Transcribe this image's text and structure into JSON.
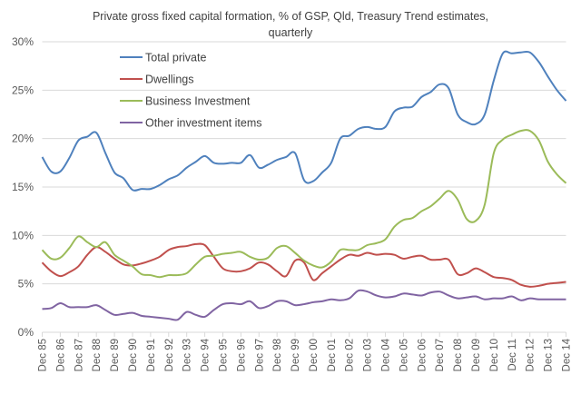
{
  "chart_data": {
    "type": "line",
    "title": "Private gross fixed capital formation, % of GSP, Qld, Treasury Trend estimates, quarterly",
    "title_lines": [
      "Private gross fixed capital formation, % of GSP, Qld, Treasury Trend estimates,",
      "quarterly"
    ],
    "xlabel": "",
    "ylabel": "",
    "ylim": [
      0,
      30
    ],
    "yticks": [
      "0%",
      "5%",
      "10%",
      "15%",
      "20%",
      "25%",
      "30%"
    ],
    "ytick_values": [
      0,
      5,
      10,
      15,
      20,
      25,
      30
    ],
    "xticks": [
      "Dec 85",
      "Dec 86",
      "Dec 87",
      "Dec 88",
      "Dec 89",
      "Dec 90",
      "Dec 91",
      "Dec 92",
      "Dec 93",
      "Dec 94",
      "Dec 95",
      "Dec 96",
      "Dec 97",
      "Dec 98",
      "Dec 99",
      "Dec 00",
      "Dec 01",
      "Dec 02",
      "Dec 03",
      "Dec 04",
      "Dec 05",
      "Dec 06",
      "Dec 07",
      "Dec 08",
      "Dec 09",
      "Dec 10",
      "Dec 11",
      "Dec 12",
      "Dec 13",
      "Dec 14"
    ],
    "x_note_points": "half-yearly from Dec 85 to Dec 14",
    "grid": true,
    "legend_placement": "top-left",
    "series": [
      {
        "name": "Total private",
        "color": "#4F81BD",
        "values": [
          18.1,
          16.6,
          16.6,
          18.0,
          19.8,
          20.2,
          20.6,
          18.5,
          16.5,
          15.9,
          14.7,
          14.8,
          14.8,
          15.2,
          15.8,
          16.2,
          17.0,
          17.6,
          18.2,
          17.5,
          17.4,
          17.5,
          17.5,
          18.3,
          17.0,
          17.3,
          17.8,
          18.1,
          18.5,
          15.7,
          15.6,
          16.5,
          17.5,
          20.0,
          20.3,
          21.0,
          21.2,
          21.0,
          21.2,
          22.8,
          23.2,
          23.3,
          24.3,
          24.8,
          25.6,
          25.2,
          22.5,
          21.7,
          21.5,
          22.5,
          26.0,
          28.8,
          28.8,
          28.9,
          28.9,
          27.9,
          26.4,
          25.0,
          23.9
        ]
      },
      {
        "name": "Dwellings",
        "color": "#C0504D",
        "values": [
          7.2,
          6.3,
          5.8,
          6.2,
          6.8,
          8.0,
          8.8,
          8.3,
          7.6,
          7.0,
          6.9,
          7.1,
          7.4,
          7.8,
          8.5,
          8.8,
          8.9,
          9.1,
          9.0,
          7.8,
          6.6,
          6.3,
          6.3,
          6.6,
          7.2,
          7.0,
          6.3,
          5.8,
          7.4,
          7.2,
          5.4,
          6.1,
          6.8,
          7.5,
          8.0,
          7.9,
          8.2,
          8.0,
          8.1,
          8.0,
          7.6,
          7.8,
          7.9,
          7.5,
          7.5,
          7.5,
          6.0,
          6.1,
          6.6,
          6.2,
          5.7,
          5.6,
          5.4,
          4.9,
          4.7,
          4.8,
          5.0,
          5.1,
          5.2
        ]
      },
      {
        "name": "Business Investment",
        "color": "#9BBB59",
        "values": [
          8.5,
          7.6,
          7.7,
          8.7,
          9.9,
          9.3,
          8.8,
          9.3,
          8.0,
          7.4,
          6.8,
          6.0,
          5.9,
          5.7,
          5.9,
          5.9,
          6.1,
          7.0,
          7.8,
          7.9,
          8.1,
          8.2,
          8.3,
          7.8,
          7.5,
          7.7,
          8.7,
          8.9,
          8.2,
          7.4,
          6.9,
          6.7,
          7.3,
          8.5,
          8.5,
          8.5,
          9.0,
          9.2,
          9.6,
          10.9,
          11.6,
          11.8,
          12.5,
          13.0,
          13.8,
          14.6,
          13.7,
          11.7,
          11.5,
          13.2,
          18.5,
          19.9,
          20.4,
          20.8,
          20.8,
          19.8,
          17.6,
          16.3,
          15.4
        ]
      },
      {
        "name": "Other investment items",
        "color": "#8064A2",
        "values": [
          2.4,
          2.5,
          3.0,
          2.6,
          2.6,
          2.6,
          2.8,
          2.3,
          1.8,
          1.9,
          2.0,
          1.7,
          1.6,
          1.5,
          1.4,
          1.3,
          2.1,
          1.8,
          1.6,
          2.3,
          2.9,
          3.0,
          2.9,
          3.2,
          2.5,
          2.7,
          3.2,
          3.2,
          2.8,
          2.9,
          3.1,
          3.2,
          3.4,
          3.3,
          3.5,
          4.3,
          4.2,
          3.8,
          3.6,
          3.7,
          4.0,
          3.9,
          3.8,
          4.1,
          4.2,
          3.8,
          3.5,
          3.6,
          3.7,
          3.4,
          3.5,
          3.5,
          3.7,
          3.3,
          3.5,
          3.4,
          3.4,
          3.4,
          3.4
        ]
      }
    ]
  }
}
